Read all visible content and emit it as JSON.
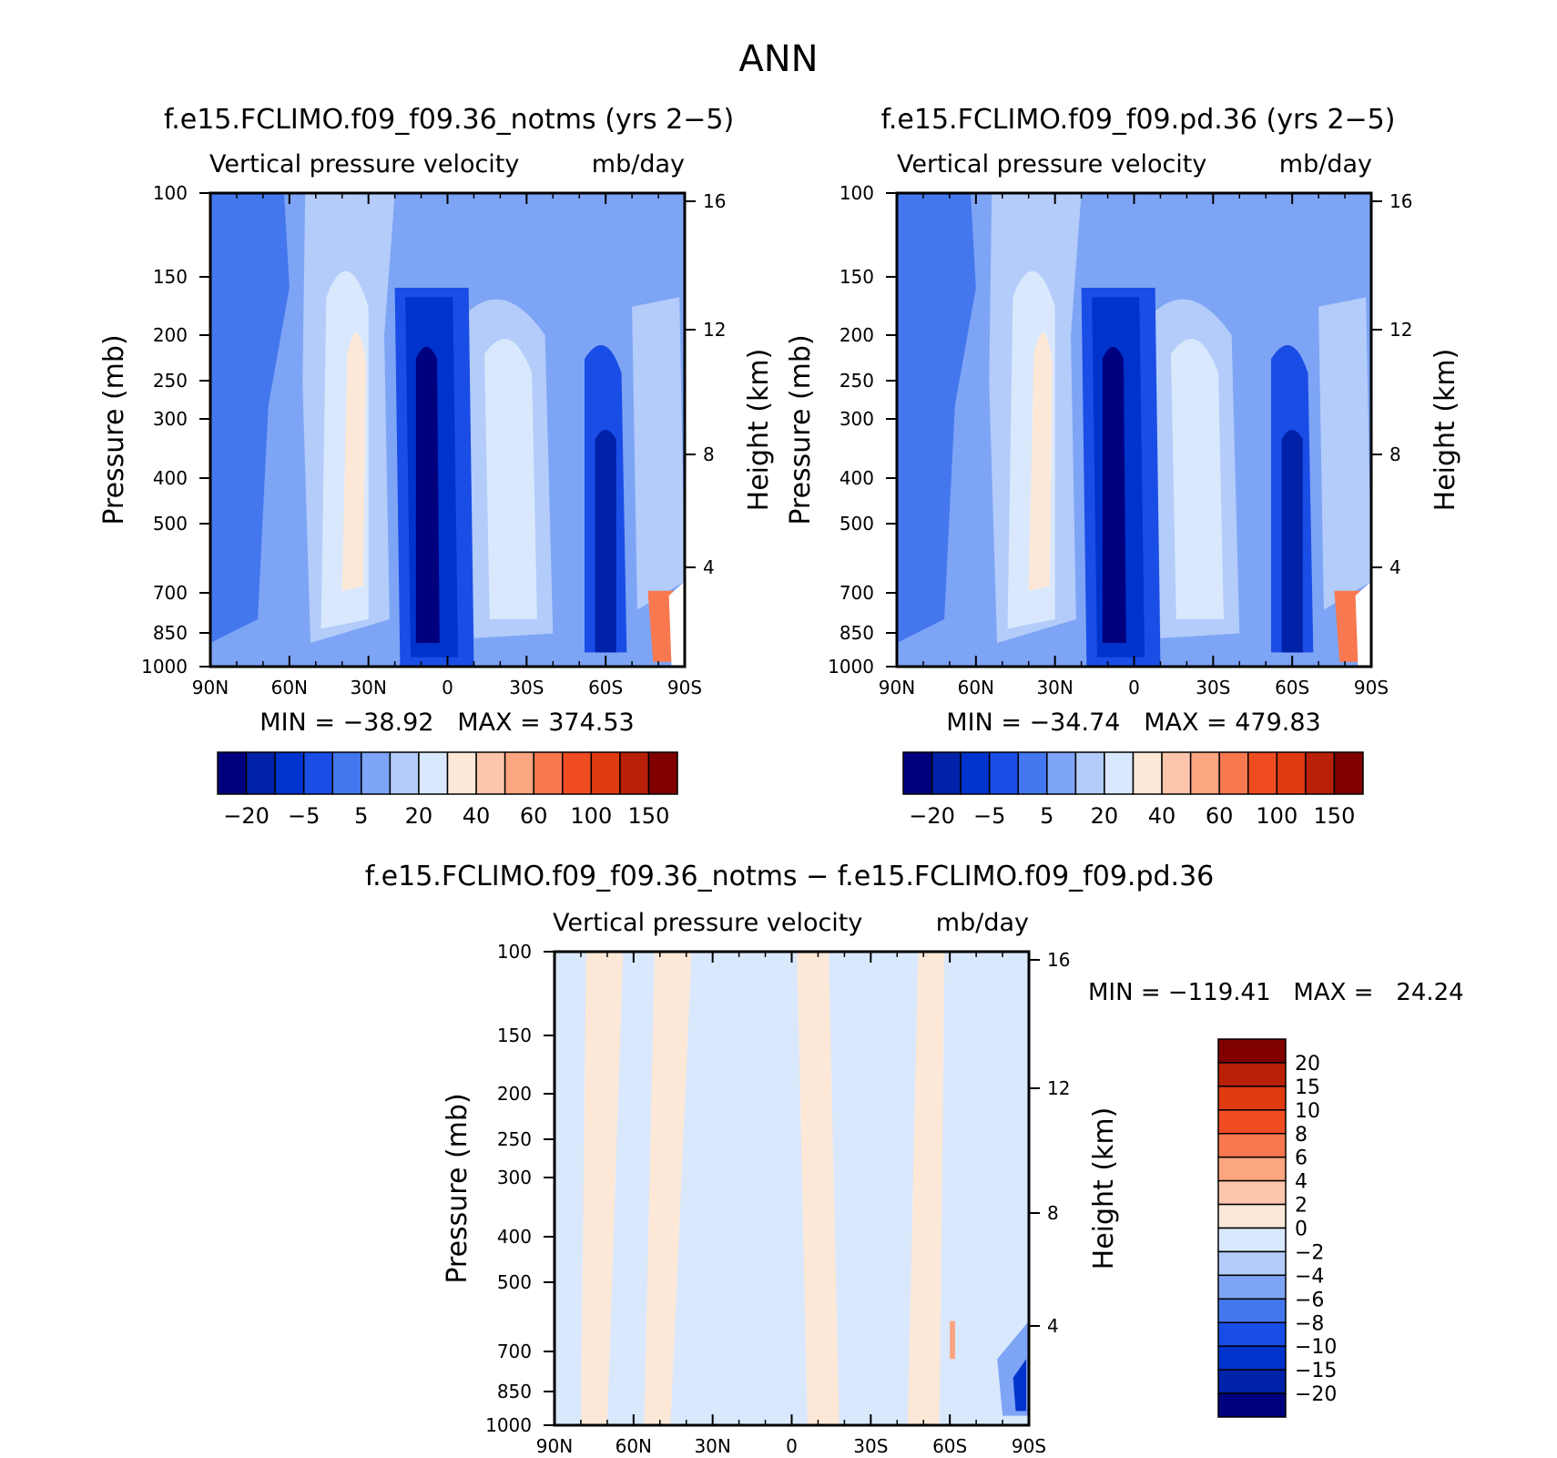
{
  "figure_title": "ANN",
  "chart_data": [
    {
      "type": "heatmap",
      "title": "f.e15.FCLIMO.f09_f09.36_notms (yrs 2−5)",
      "subtitle_left": "Vertical pressure velocity",
      "subtitle_right": "mb/day",
      "ylabel": "Pressure (mb)",
      "ylabel_right": "Height (km)",
      "x_ticks": [
        "90N",
        "60N",
        "30N",
        "0",
        "30S",
        "60S",
        "90S"
      ],
      "y_ticks": [
        "100",
        "150",
        "200",
        "250",
        "300",
        "400",
        "500",
        "700",
        "850",
        "1000"
      ],
      "y_ticks_right": [
        "16",
        "12",
        "8",
        "4"
      ],
      "ylim": [
        1000,
        100
      ],
      "min_max": "MIN = −38.92   MAX = 374.53",
      "colorbar_labels": [
        "−20",
        "−5",
        "5",
        "20",
        "40",
        "60",
        "100",
        "150"
      ],
      "colorbar_levels": [
        -20,
        -10,
        -5,
        0,
        5,
        10,
        20,
        30,
        40,
        50,
        60,
        80,
        100,
        120,
        150
      ],
      "colorbar_colors": [
        "#00007f",
        "#0022a8",
        "#0033cc",
        "#1a4de6",
        "#4477ee",
        "#7ea4f5",
        "#b3ccfa",
        "#d9e8fc",
        "#fde8d8",
        "#fdc5ab",
        "#fba581",
        "#f8784f",
        "#f04c21",
        "#df3a10",
        "#b82008",
        "#800000"
      ]
    },
    {
      "type": "heatmap",
      "title": "f.e15.FCLIMO.f09_f09.pd.36 (yrs 2−5)",
      "subtitle_left": "Vertical pressure velocity",
      "subtitle_right": "mb/day",
      "ylabel": "Pressure (mb)",
      "ylabel_right": "Height (km)",
      "x_ticks": [
        "90N",
        "60N",
        "30N",
        "0",
        "30S",
        "60S",
        "90S"
      ],
      "y_ticks": [
        "100",
        "150",
        "200",
        "250",
        "300",
        "400",
        "500",
        "700",
        "850",
        "1000"
      ],
      "y_ticks_right": [
        "16",
        "12",
        "8",
        "4"
      ],
      "ylim": [
        1000,
        100
      ],
      "min_max": "MIN = −34.74   MAX = 479.83",
      "colorbar_labels": [
        "−20",
        "−5",
        "5",
        "20",
        "40",
        "60",
        "100",
        "150"
      ],
      "colorbar_levels": [
        -20,
        -10,
        -5,
        0,
        5,
        10,
        20,
        30,
        40,
        50,
        60,
        80,
        100,
        120,
        150
      ],
      "colorbar_colors": [
        "#00007f",
        "#0022a8",
        "#0033cc",
        "#1a4de6",
        "#4477ee",
        "#7ea4f5",
        "#b3ccfa",
        "#d9e8fc",
        "#fde8d8",
        "#fdc5ab",
        "#fba581",
        "#f8784f",
        "#f04c21",
        "#df3a10",
        "#b82008",
        "#800000"
      ]
    },
    {
      "type": "heatmap",
      "title": "f.e15.FCLIMO.f09_f09.36_notms − f.e15.FCLIMO.f09_f09.pd.36",
      "subtitle_left": "Vertical pressure velocity",
      "subtitle_right": "mb/day",
      "ylabel": "Pressure (mb)",
      "ylabel_right": "Height (km)",
      "x_ticks": [
        "90N",
        "60N",
        "30N",
        "0",
        "30S",
        "60S",
        "90S"
      ],
      "y_ticks": [
        "100",
        "150",
        "200",
        "250",
        "300",
        "400",
        "500",
        "700",
        "850",
        "1000"
      ],
      "y_ticks_right": [
        "16",
        "12",
        "8",
        "4"
      ],
      "ylim": [
        1000,
        100
      ],
      "min_max": "MIN = −119.41   MAX =   24.24",
      "colorbar_labels": [
        "20",
        "15",
        "10",
        "8",
        "6",
        "4",
        "2",
        "0",
        "−2",
        "−4",
        "−6",
        "−8",
        "−10",
        "−15",
        "−20"
      ],
      "colorbar_colors": [
        "#800000",
        "#b82008",
        "#df3a10",
        "#f04c21",
        "#f8784f",
        "#fba581",
        "#fdc5ab",
        "#fde8d8",
        "#d9e8fc",
        "#b3ccfa",
        "#7ea4f5",
        "#4477ee",
        "#1a4de6",
        "#0033cc",
        "#0022a8",
        "#00007f"
      ]
    }
  ]
}
